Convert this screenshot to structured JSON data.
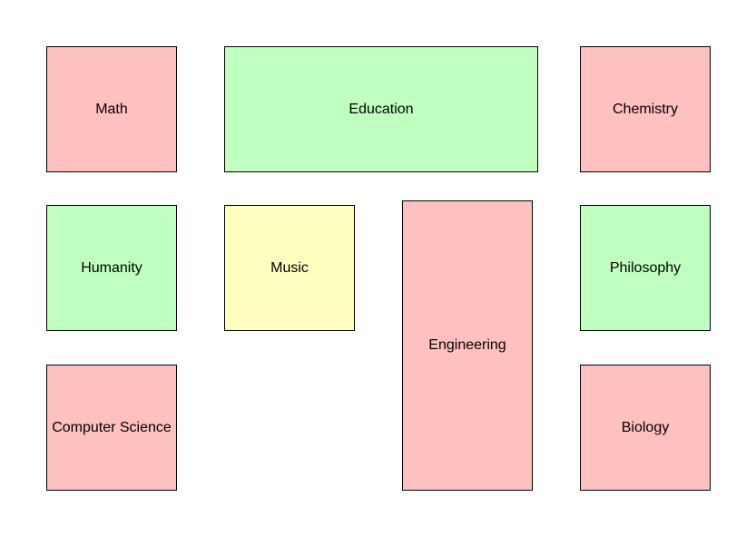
{
  "colors": {
    "red": "#ffc0c0",
    "green": "#c0ffc0",
    "yellow": "#ffffc0",
    "border": "#000000"
  },
  "boxes": {
    "math": {
      "label": "Math",
      "color": "red"
    },
    "education": {
      "label": "Education",
      "color": "green"
    },
    "chemistry": {
      "label": "Chemistry",
      "color": "red"
    },
    "humanity": {
      "label": "Humanity",
      "color": "green"
    },
    "music": {
      "label": "Music",
      "color": "yellow"
    },
    "engineering": {
      "label": "Engineering",
      "color": "red"
    },
    "philosophy": {
      "label": "Philosophy",
      "color": "green"
    },
    "computer_science": {
      "label": "Computer Science",
      "color": "red"
    },
    "biology": {
      "label": "Biology",
      "color": "red"
    }
  }
}
